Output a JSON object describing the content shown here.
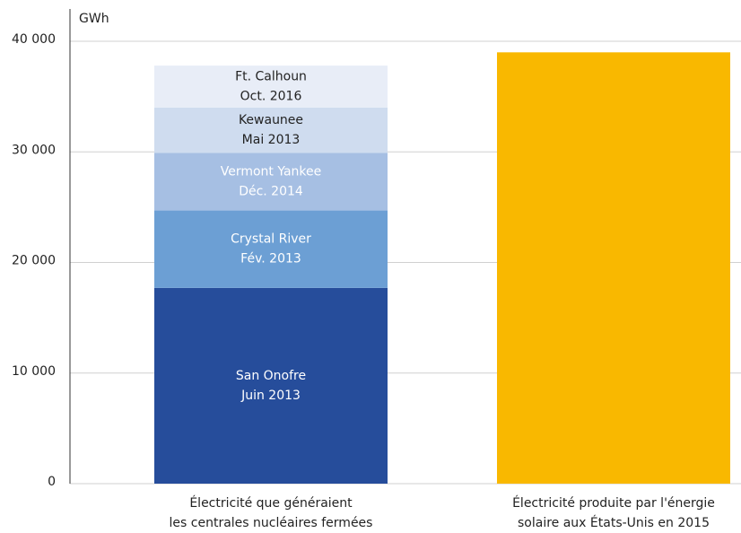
{
  "chart_data": {
    "type": "stacked_bar",
    "y_axis_label": "GWh",
    "categories": [
      [
        "Électricité que généraient",
        "les centrales nucléaires fermées"
      ],
      [
        "Électricité produite par l'énergie",
        "solaire aux États-Unis en 2015"
      ]
    ],
    "series": [
      {
        "name": "San Onofre",
        "date": "Juin 2013",
        "color": "#264d9b",
        "text_color": "#ffffff",
        "values": [
          17700,
          null
        ]
      },
      {
        "name": "Crystal River",
        "date": "Fév. 2013",
        "color": "#6c9fd4",
        "text_color": "#ffffff",
        "values": [
          7000,
          null
        ]
      },
      {
        "name": "Vermont Yankee",
        "date": "Déc. 2014",
        "color": "#a6bfe3",
        "text_color": "#ffffff",
        "values": [
          5200,
          null
        ]
      },
      {
        "name": "Kewaunee",
        "date": "Mai 2013",
        "color": "#cfdcef",
        "text_color": "#222222",
        "values": [
          4100,
          null
        ]
      },
      {
        "name": "Ft. Calhoun",
        "date": "Oct. 2016",
        "color": "#e8edf7",
        "text_color": "#222222",
        "values": [
          3800,
          null
        ]
      },
      {
        "color": "#f9b800",
        "values": [
          null,
          39000
        ]
      }
    ],
    "ylim": [
      0,
      40000
    ],
    "yticks": [
      0,
      {
        "value": 10000,
        "label": "10 000"
      },
      {
        "value": 20000,
        "label": "20 000"
      },
      {
        "value": 30000,
        "label": "30 000"
      },
      {
        "value": 40000,
        "label": "40 000"
      }
    ],
    "grid": true
  }
}
